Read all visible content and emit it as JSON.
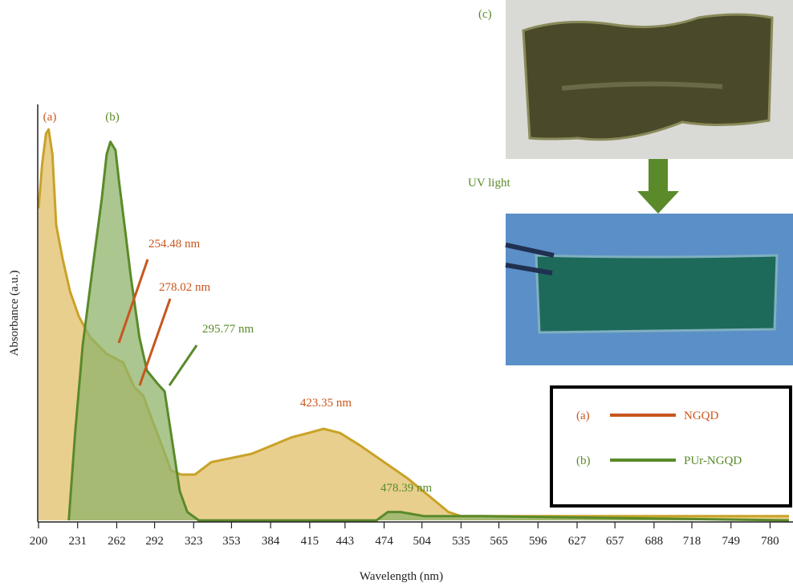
{
  "chart_data": {
    "type": "area",
    "x_label": "Wavelength (nm)",
    "y_label": "Absorbance (a.u.)",
    "xlim": [
      200,
      795
    ],
    "ylim": [
      0,
      1
    ],
    "xticks": [
      200,
      231,
      262,
      292,
      323,
      353,
      384,
      415,
      443,
      474,
      504,
      535,
      565,
      596,
      627,
      657,
      688,
      718,
      749,
      780
    ],
    "series": [
      {
        "name": "NGQD",
        "label": "(a)",
        "color": "#c8561e",
        "line_color": "#c9a227",
        "fill_color": "#e2bf68",
        "x": [
          200,
          203,
          206,
          208,
          211,
          214,
          219,
          225,
          232,
          241,
          254,
          267,
          276,
          283,
          289,
          299,
          305,
          313,
          324,
          337,
          353,
          369,
          385,
          401,
          414,
          426,
          439,
          455,
          474,
          493,
          509,
          525,
          535,
          614,
          795
        ],
        "values": [
          0.75,
          0.86,
          0.93,
          0.94,
          0.88,
          0.71,
          0.63,
          0.55,
          0.49,
          0.44,
          0.4,
          0.38,
          0.32,
          0.3,
          0.25,
          0.17,
          0.12,
          0.11,
          0.11,
          0.14,
          0.15,
          0.16,
          0.18,
          0.2,
          0.21,
          0.22,
          0.21,
          0.18,
          0.14,
          0.1,
          0.06,
          0.02,
          0.01,
          0.01,
          0.01
        ]
      },
      {
        "name": "PUr-NGQD",
        "label": "(b)",
        "color": "#5a8a2a",
        "line_color": "#5a8a2a",
        "fill_color": "#8fb36a",
        "x": [
          224,
          229,
          235,
          243,
          250,
          254,
          257,
          261,
          264,
          269,
          273,
          280,
          286,
          294,
          300,
          305,
          312,
          318,
          327,
          468,
          477,
          487,
          506,
          551,
          795
        ],
        "values": [
          0,
          0.21,
          0.42,
          0.61,
          0.77,
          0.88,
          0.91,
          0.89,
          0.81,
          0.69,
          0.59,
          0.44,
          0.36,
          0.33,
          0.31,
          0.21,
          0.07,
          0.02,
          0,
          0,
          0.02,
          0.02,
          0.01,
          0.01,
          0
        ]
      }
    ],
    "annotations": [
      {
        "text": "254.48 nm",
        "color": "#c8561e"
      },
      {
        "text": "278.02 nm",
        "color": "#c8561e"
      },
      {
        "text": "295.77 nm",
        "color": "#5a8a2a"
      },
      {
        "text": "423.35 nm",
        "color": "#c8561e"
      },
      {
        "text": "478.39 nm",
        "color": "#5a8a2a"
      }
    ]
  },
  "photo_panel": {
    "label": "(c)",
    "arrow_label": "UV light"
  }
}
